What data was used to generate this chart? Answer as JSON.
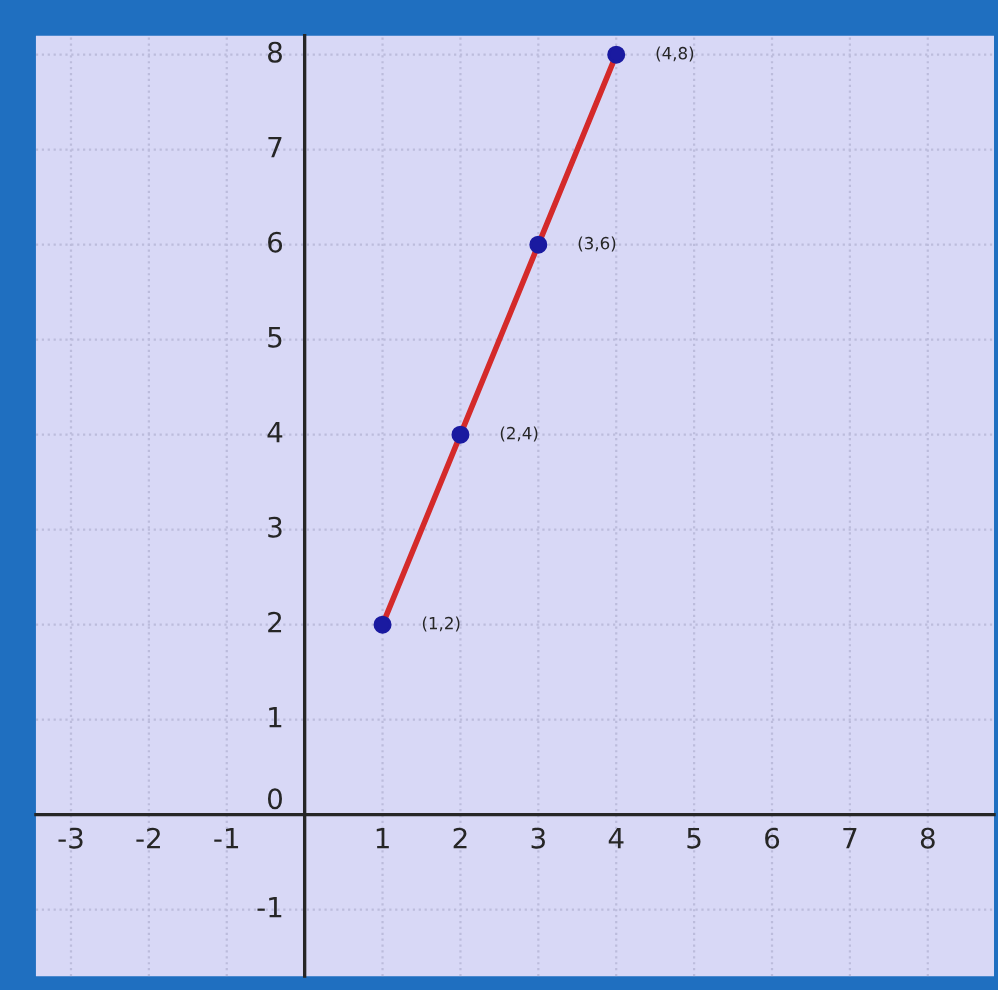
{
  "chart_data": {
    "type": "line",
    "x": [
      1,
      2,
      3,
      4
    ],
    "series": [
      {
        "color": "#d42a2a",
        "values": [
          2,
          4,
          6,
          8
        ]
      },
      {
        "type": "scatter",
        "marker": "circle",
        "color": "#1a1aa0",
        "values": [
          2,
          4,
          6,
          8
        ]
      }
    ],
    "xlim": [
      -3.45,
      8.85
    ],
    "ylim": [
      -1.7,
      8.2
    ],
    "xticks": [
      -3,
      -2,
      -1,
      1,
      2,
      3,
      4,
      5,
      6,
      7,
      8
    ],
    "yticks": [
      -1,
      0,
      1,
      2,
      3,
      4,
      5,
      6,
      7,
      8
    ],
    "grid": true,
    "annotations": [
      {
        "text": "(1,2)",
        "x": 1,
        "y": 2
      },
      {
        "text": "(2,4)",
        "x": 2,
        "y": 4
      },
      {
        "text": "(3,6)",
        "x": 3,
        "y": 6
      },
      {
        "text": "(4,8)",
        "x": 4,
        "y": 8
      }
    ]
  }
}
